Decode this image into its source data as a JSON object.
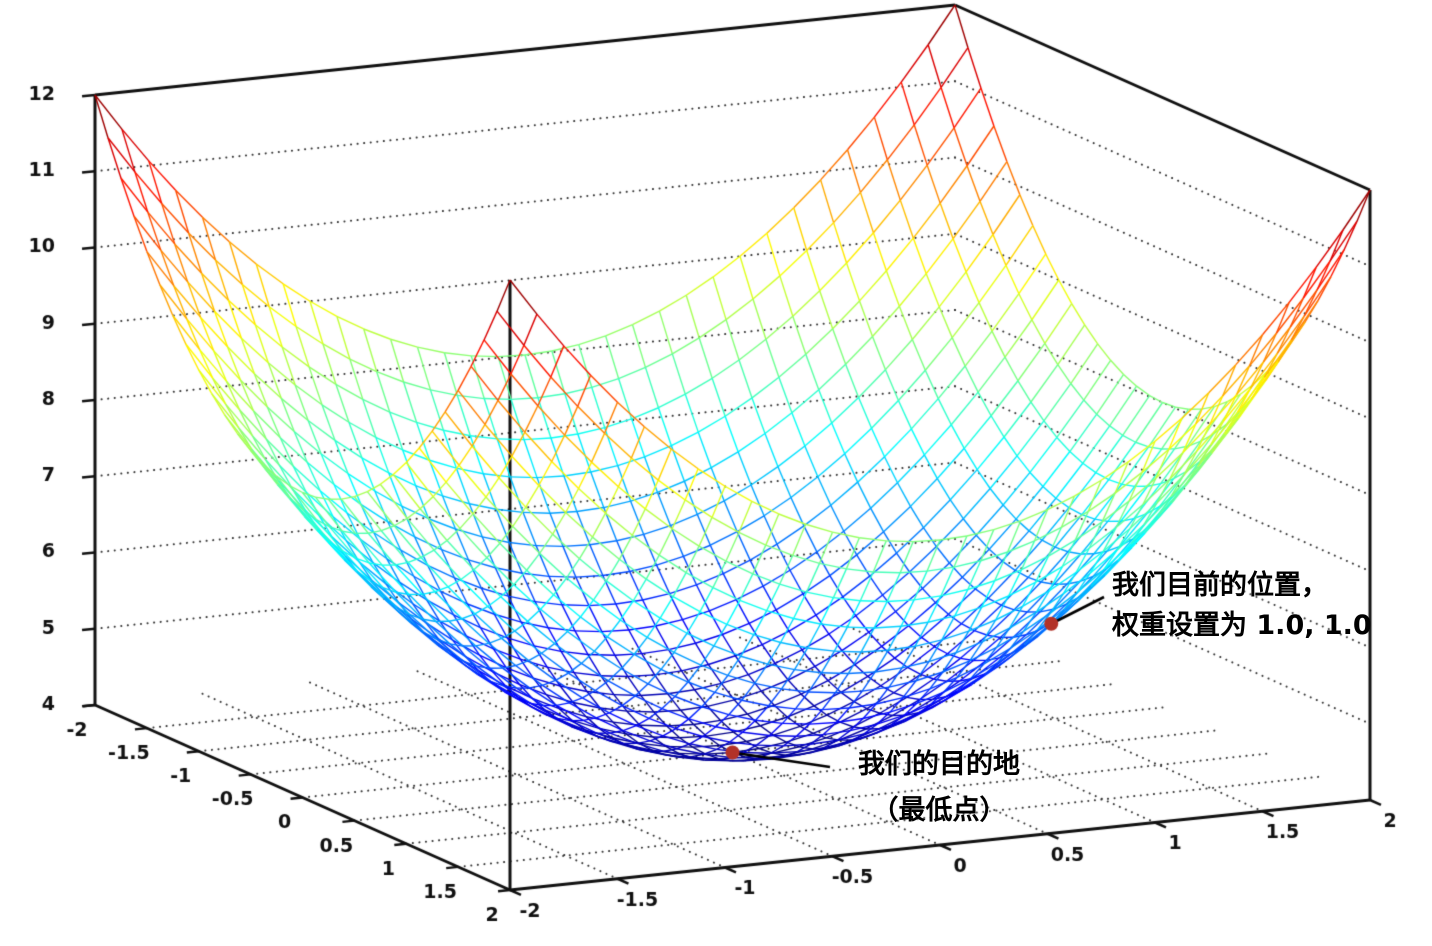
{
  "figure": {
    "background": "#ffffff",
    "axis_color": "#111111",
    "grid_color": "#333333"
  },
  "chart_data": {
    "type": "surface3d-wireframe",
    "title": "",
    "xlabel": "",
    "ylabel": "",
    "zlabel": "",
    "z_function": "x*x + y*y + 4",
    "xlim": [
      -2,
      2
    ],
    "ylim": [
      -2,
      2
    ],
    "zlim": [
      4,
      12
    ],
    "mesh_divisions": 32,
    "colormap": "jet",
    "xticks": {
      "values": [
        -2,
        -1.5,
        -1,
        -0.5,
        0,
        0.5,
        1,
        1.5,
        2
      ],
      "labels": [
        "-2",
        "-1.5",
        "-1",
        "-0.5",
        "0",
        "0.5",
        "1",
        "1.5",
        "2"
      ]
    },
    "yticks": {
      "values": [
        -2,
        -1.5,
        -1,
        -0.5,
        0,
        0.5,
        1,
        1.5,
        2
      ],
      "labels": [
        "-2",
        "-1.5",
        "-1",
        "-0.5",
        "0",
        "0.5",
        "1",
        "1.5",
        "2"
      ]
    },
    "zticks": {
      "values": [
        4,
        5,
        6,
        7,
        8,
        9,
        10,
        11,
        12
      ],
      "labels": [
        "4",
        "5",
        "6",
        "7",
        "8",
        "9",
        "10",
        "11",
        "12"
      ]
    },
    "grid": {
      "wall_z_levels": [
        5,
        6,
        7,
        8,
        9,
        10,
        11
      ],
      "floor_x": [
        -1.5,
        -1,
        -0.5,
        0,
        0.5,
        1,
        1.5
      ],
      "floor_y": [
        -1.5,
        -1,
        -0.5,
        0,
        0.5,
        1,
        1.5
      ]
    },
    "annotations": [
      {
        "id": "current-position",
        "x": 1,
        "y": 1,
        "lines": [
          "我们目前的位置，",
          "权重设置为 1.0, 1.0"
        ],
        "marker_color": "#b23228"
      },
      {
        "id": "destination",
        "x": 0,
        "y": 0,
        "lines": [
          "我们的目的地",
          "（最低点）"
        ],
        "marker_color": "#b23228"
      }
    ]
  }
}
